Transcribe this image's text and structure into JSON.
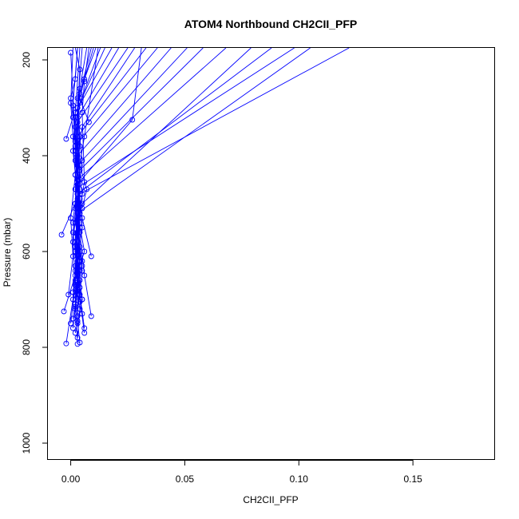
{
  "chart_data": {
    "type": "scatter",
    "title": "ATOM4 Northbound CH2CII_PFP",
    "xlabel": "CH2CII_PFP",
    "ylabel": "Pressure (mbar)",
    "xlim": [
      -0.01,
      0.186
    ],
    "ylim": [
      1035,
      175
    ],
    "y_reversed": true,
    "x_ticks": [
      0.0,
      0.05,
      0.1,
      0.15
    ],
    "x_tick_labels": [
      "0.00",
      "0.05",
      "0.10",
      "0.15"
    ],
    "y_ticks": [
      200,
      400,
      600,
      800,
      1000
    ],
    "y_tick_labels": [
      "200",
      "400",
      "600",
      "800",
      "1000"
    ],
    "grid": false,
    "legend": "none",
    "colors": {
      "series": "#0000ff",
      "axes": "#000000"
    },
    "series": [
      {
        "points": [
          [
            0.004,
            790
          ],
          [
            0.003,
            745
          ],
          [
            0.005,
            700
          ],
          [
            0.002,
            640
          ],
          [
            0.003,
            560
          ],
          [
            0.004,
            480
          ],
          [
            0.122,
            175
          ]
        ]
      },
      {
        "points": [
          [
            0.003,
            780
          ],
          [
            0.004,
            720
          ],
          [
            0.002,
            660
          ],
          [
            0.006,
            600
          ],
          [
            0.003,
            520
          ],
          [
            0.105,
            175
          ]
        ]
      },
      {
        "points": [
          [
            0.002,
            770
          ],
          [
            0.005,
            700
          ],
          [
            0.003,
            610
          ],
          [
            0.004,
            540
          ],
          [
            0.002,
            470
          ],
          [
            0.098,
            175
          ]
        ]
      },
      {
        "points": [
          [
            0.006,
            760
          ],
          [
            0.004,
            690
          ],
          [
            0.003,
            620
          ],
          [
            0.005,
            550
          ],
          [
            0.003,
            480
          ],
          [
            0.088,
            175
          ]
        ]
      },
      {
        "points": [
          [
            0.003,
            750
          ],
          [
            0.002,
            690
          ],
          [
            0.004,
            620
          ],
          [
            0.003,
            560
          ],
          [
            0.005,
            500
          ],
          [
            0.079,
            175
          ]
        ]
      },
      {
        "points": [
          [
            0.001,
            740
          ],
          [
            0.003,
            680
          ],
          [
            0.002,
            600
          ],
          [
            0.004,
            530
          ],
          [
            0.003,
            450
          ],
          [
            0.068,
            175
          ]
        ]
      },
      {
        "points": [
          [
            0.003,
            735
          ],
          [
            0.004,
            660
          ],
          [
            0.002,
            590
          ],
          [
            0.003,
            520
          ],
          [
            0.004,
            430
          ],
          [
            0.058,
            175
          ]
        ]
      },
      {
        "points": [
          [
            0.005,
            730
          ],
          [
            0.003,
            670
          ],
          [
            0.004,
            600
          ],
          [
            0.002,
            510
          ],
          [
            0.003,
            420
          ],
          [
            0.051,
            175
          ]
        ]
      },
      {
        "points": [
          [
            0.002,
            720
          ],
          [
            0.004,
            640
          ],
          [
            0.003,
            560
          ],
          [
            0.005,
            480
          ],
          [
            0.003,
            400
          ],
          [
            0.044,
            175
          ]
        ]
      },
      {
        "points": [
          [
            0.004,
            705
          ],
          [
            0.002,
            630
          ],
          [
            0.004,
            550
          ],
          [
            0.003,
            460
          ],
          [
            0.002,
            380
          ],
          [
            0.038,
            175
          ]
        ]
      },
      {
        "points": [
          [
            0.003,
            690
          ],
          [
            0.005,
            620
          ],
          [
            0.002,
            540
          ],
          [
            0.004,
            450
          ],
          [
            0.003,
            360
          ],
          [
            0.033,
            175
          ]
        ]
      },
      {
        "points": [
          [
            0.001,
            685
          ],
          [
            0.003,
            610
          ],
          [
            0.004,
            520
          ],
          [
            0.002,
            440
          ],
          [
            0.005,
            340
          ],
          [
            0.028,
            175
          ]
        ]
      },
      {
        "points": [
          [
            0.009,
            735
          ],
          [
            0.006,
            650
          ],
          [
            0.004,
            560
          ],
          [
            0.003,
            460
          ],
          [
            0.027,
            325
          ],
          [
            0.031,
            175
          ]
        ]
      },
      {
        "points": [
          [
            0.004,
            675
          ],
          [
            0.002,
            600
          ],
          [
            0.003,
            510
          ],
          [
            0.004,
            420
          ],
          [
            0.003,
            330
          ],
          [
            0.025,
            175
          ]
        ]
      },
      {
        "points": [
          [
            0.002,
            665
          ],
          [
            0.004,
            590
          ],
          [
            0.003,
            500
          ],
          [
            0.005,
            410
          ],
          [
            0.003,
            320
          ],
          [
            0.021,
            175
          ]
        ]
      },
      {
        "points": [
          [
            0.003,
            650
          ],
          [
            0.002,
            570
          ],
          [
            0.004,
            490
          ],
          [
            0.003,
            400
          ],
          [
            0.002,
            310
          ],
          [
            0.018,
            175
          ]
        ]
      },
      {
        "points": [
          [
            0.005,
            640
          ],
          [
            0.003,
            560
          ],
          [
            0.002,
            470
          ],
          [
            0.004,
            380
          ],
          [
            0.003,
            300
          ],
          [
            0.015,
            175
          ]
        ]
      },
      {
        "points": [
          [
            0.002,
            630
          ],
          [
            0.004,
            550
          ],
          [
            0.003,
            460
          ],
          [
            0.002,
            370
          ],
          [
            0.004,
            290
          ],
          [
            0.013,
            175
          ]
        ]
      },
      {
        "points": [
          [
            0.009,
            610
          ],
          [
            0.005,
            530
          ],
          [
            0.003,
            450
          ],
          [
            0.004,
            360
          ],
          [
            0.003,
            280
          ],
          [
            0.011,
            175
          ]
        ]
      },
      {
        "points": [
          [
            -0.004,
            565
          ],
          [
            0.002,
            500
          ],
          [
            0.003,
            420
          ],
          [
            0.002,
            340
          ],
          [
            0.004,
            270
          ],
          [
            0.009,
            175
          ]
        ]
      },
      {
        "points": [
          [
            -0.003,
            725
          ],
          [
            0.002,
            650
          ],
          [
            0.003,
            560
          ],
          [
            0.004,
            470
          ],
          [
            0.002,
            380
          ],
          [
            0.004,
            260
          ],
          [
            0.007,
            175
          ]
        ]
      },
      {
        "points": [
          [
            -0.002,
            792
          ],
          [
            0.001,
            700
          ],
          [
            0.003,
            600
          ],
          [
            0.002,
            500
          ],
          [
            0.003,
            400
          ],
          [
            0.003,
            300
          ],
          [
            0.005,
            175
          ]
        ]
      },
      {
        "points": [
          [
            0.0,
            750
          ],
          [
            0.002,
            670
          ],
          [
            0.001,
            580
          ],
          [
            0.003,
            490
          ],
          [
            0.002,
            390
          ],
          [
            0.001,
            295
          ],
          [
            0.003,
            175
          ]
        ]
      },
      {
        "points": [
          [
            -0.001,
            690
          ],
          [
            0.001,
            610
          ],
          [
            0.0,
            530
          ],
          [
            0.002,
            440
          ],
          [
            0.001,
            360
          ],
          [
            0.0,
            290
          ],
          [
            0.001,
            175
          ]
        ]
      },
      {
        "points": [
          [
            0.003,
            793
          ],
          [
            0.002,
            710
          ],
          [
            0.004,
            620
          ],
          [
            0.001,
            540
          ],
          [
            0.003,
            450
          ],
          [
            0.002,
            370
          ],
          [
            0.0,
            185
          ]
        ]
      },
      {
        "points": [
          [
            0.001,
            760
          ],
          [
            0.003,
            680
          ],
          [
            0.002,
            590
          ],
          [
            0.004,
            500
          ],
          [
            0.002,
            410
          ],
          [
            0.004,
            220
          ],
          [
            0.002,
            175
          ]
        ]
      },
      {
        "points": [
          [
            0.006,
            770
          ],
          [
            0.004,
            700
          ],
          [
            0.005,
            630
          ],
          [
            0.003,
            540
          ],
          [
            0.006,
            455
          ],
          [
            0.005,
            310
          ],
          [
            0.006,
            245
          ],
          [
            0.008,
            175
          ]
        ]
      },
      {
        "points": [
          [
            0.002,
            715
          ],
          [
            0.003,
            640
          ],
          [
            0.001,
            560
          ],
          [
            0.003,
            480
          ],
          [
            0.001,
            390
          ],
          [
            0.002,
            310
          ],
          [
            0.004,
            175
          ]
        ]
      },
      {
        "points": [
          [
            0.008,
            330
          ],
          [
            0.004,
            280
          ],
          [
            0.006,
            240
          ],
          [
            0.01,
            175
          ]
        ]
      },
      {
        "points": [
          [
            -0.002,
            365
          ],
          [
            0.001,
            320
          ],
          [
            0.0,
            280
          ],
          [
            0.002,
            240
          ],
          [
            0.003,
            175
          ]
        ]
      },
      {
        "points": [
          [
            0.005,
            510
          ],
          [
            0.007,
            470
          ],
          [
            0.004,
            420
          ],
          [
            0.006,
            360
          ],
          [
            0.012,
            175
          ]
        ]
      }
    ]
  }
}
